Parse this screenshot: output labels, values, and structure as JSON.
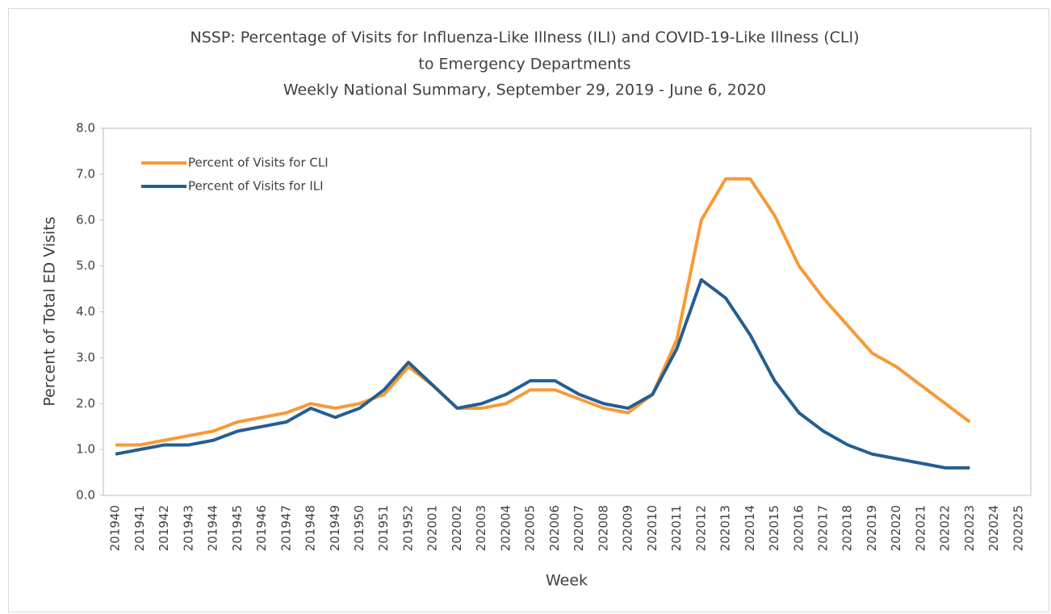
{
  "chart_data": {
    "type": "line",
    "title": [
      "NSSP: Percentage of Visits for Influenza-Like Illness (ILI) and COVID-19-Like Illness (CLI)",
      "to Emergency Departments"
    ],
    "subtitle": "Weekly National Summary, September 29, 2019 - June 6, 2020",
    "xlabel": "Week",
    "ylabel": "Percent of Total ED Visits",
    "categories": [
      "201940",
      "201941",
      "201942",
      "201943",
      "201944",
      "201945",
      "201946",
      "201947",
      "201948",
      "201949",
      "201950",
      "201951",
      "201952",
      "202001",
      "202002",
      "202003",
      "202004",
      "202005",
      "202006",
      "202007",
      "202008",
      "202009",
      "202010",
      "202011",
      "202012",
      "202013",
      "202014",
      "202015",
      "202016",
      "202017",
      "202018",
      "202019",
      "202020",
      "202021",
      "202022",
      "202023",
      "202024",
      "202025"
    ],
    "series": [
      {
        "name": "Percent of Visits for CLI",
        "color": "#f79a36",
        "values": [
          1.1,
          1.1,
          1.2,
          1.3,
          1.4,
          1.6,
          1.7,
          1.8,
          2.0,
          1.9,
          2.0,
          2.2,
          2.8,
          2.4,
          1.9,
          1.9,
          2.0,
          2.3,
          2.3,
          2.1,
          1.9,
          1.8,
          2.2,
          3.4,
          6.0,
          6.9,
          6.9,
          6.1,
          5.0,
          4.3,
          3.7,
          3.1,
          2.8,
          2.4,
          2.0,
          1.6,
          null,
          null
        ]
      },
      {
        "name": "Percent of Visits for ILI",
        "color": "#255e91",
        "values": [
          0.9,
          1.0,
          1.1,
          1.1,
          1.2,
          1.4,
          1.5,
          1.6,
          1.9,
          1.7,
          1.9,
          2.3,
          2.9,
          2.4,
          1.9,
          2.0,
          2.2,
          2.5,
          2.5,
          2.2,
          2.0,
          1.9,
          2.2,
          3.2,
          4.7,
          4.3,
          3.5,
          2.5,
          1.8,
          1.4,
          1.1,
          0.9,
          0.8,
          0.7,
          0.6,
          0.6,
          null,
          null
        ]
      }
    ],
    "ylim": [
      0,
      8
    ],
    "yticks": [
      {
        "value": 0,
        "label": "0.0"
      },
      {
        "value": 1,
        "label": "1.0"
      },
      {
        "value": 2,
        "label": "2.0"
      },
      {
        "value": 3,
        "label": "3.0"
      },
      {
        "value": 4,
        "label": "4.0"
      },
      {
        "value": 5,
        "label": "5.0"
      },
      {
        "value": 6,
        "label": "6.0"
      },
      {
        "value": 7,
        "label": "7.0"
      },
      {
        "value": 8,
        "label": "8.0"
      }
    ],
    "grid": false,
    "legend": "upper left"
  }
}
